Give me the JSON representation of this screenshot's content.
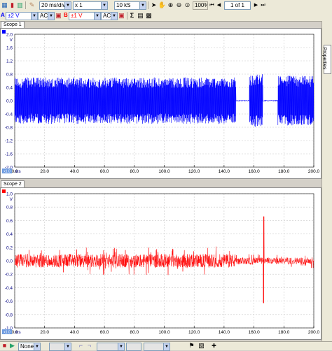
{
  "toolbar": {
    "timebase": "20 ms/div",
    "zoom_factor": "x 1",
    "samples": "10 kS",
    "zoom_level": "100%",
    "page_index": "1 of 1"
  },
  "channels": {
    "a": {
      "letter": "A",
      "range": "±2 V",
      "coupling": "AC"
    },
    "b": {
      "letter": "B",
      "range": "±1 V",
      "coupling": "AC"
    }
  },
  "properties_tab": "Properties",
  "status": {
    "trigger_mode": "None"
  },
  "colors": {
    "channel_a": "#0000ff",
    "channel_b": "#ff0000"
  },
  "scopes": [
    {
      "tab": "Scope 1",
      "unit": "V",
      "y_ticks": [
        "2.0",
        "1.6",
        "1.2",
        "0.8",
        "0.4",
        "0.0",
        "-0.4",
        "-0.8",
        "-1.2",
        "-1.6",
        "-2.0"
      ],
      "x_unit": "ms",
      "x_offset": "x1.0"
    },
    {
      "tab": "Scope 2",
      "unit": "V",
      "y_ticks": [
        "1.0",
        "0.8",
        "0.6",
        "0.4",
        "0.2",
        "0.0",
        "-0.2",
        "-0.4",
        "-0.6",
        "-0.8",
        "-1.0"
      ],
      "x_unit": "ms",
      "x_offset": "x1.0"
    }
  ],
  "chart_data": [
    {
      "type": "line",
      "xlabel": "ms",
      "ylabel": "V",
      "xlim": [
        0,
        200
      ],
      "ylim": [
        -2,
        2
      ],
      "x_ticks": [
        "0.0",
        "20.0",
        "40.0",
        "60.0",
        "80.0",
        "100.0",
        "120.0",
        "140.0",
        "160.0",
        "180.0",
        "200.0"
      ],
      "grid": true,
      "series": [
        {
          "channel": "A",
          "color": "#0000ff",
          "envelope_segments": [
            {
              "x0": 0,
              "x1": 148,
              "amplitude": 0.7
            },
            {
              "x0": 148,
              "x1": 157,
              "amplitude": 0.02
            },
            {
              "x0": 157,
              "x1": 166,
              "amplitude": 0.8
            },
            {
              "x0": 166,
              "x1": 176,
              "amplitude": 0.02
            },
            {
              "x0": 176,
              "x1": 200,
              "amplitude": 0.75
            }
          ]
        }
      ]
    },
    {
      "type": "line",
      "xlabel": "ms",
      "ylabel": "V",
      "xlim": [
        0,
        200
      ],
      "ylim": [
        -1,
        1
      ],
      "x_ticks": [
        "0.0",
        "20.0",
        "40.0",
        "60.0",
        "80.0",
        "100.0",
        "120.0",
        "140.0",
        "160.0",
        "180.0",
        "200.0"
      ],
      "grid": true,
      "series": [
        {
          "channel": "B",
          "color": "#ff0000",
          "envelope_segments": [
            {
              "x0": 0,
              "x1": 150,
              "amplitude": 0.1
            },
            {
              "x0": 150,
              "x1": 200,
              "amplitude": 0.05
            }
          ],
          "spike": {
            "x": 166.5,
            "y_max": 0.66,
            "y_min": -0.63
          }
        }
      ]
    }
  ]
}
